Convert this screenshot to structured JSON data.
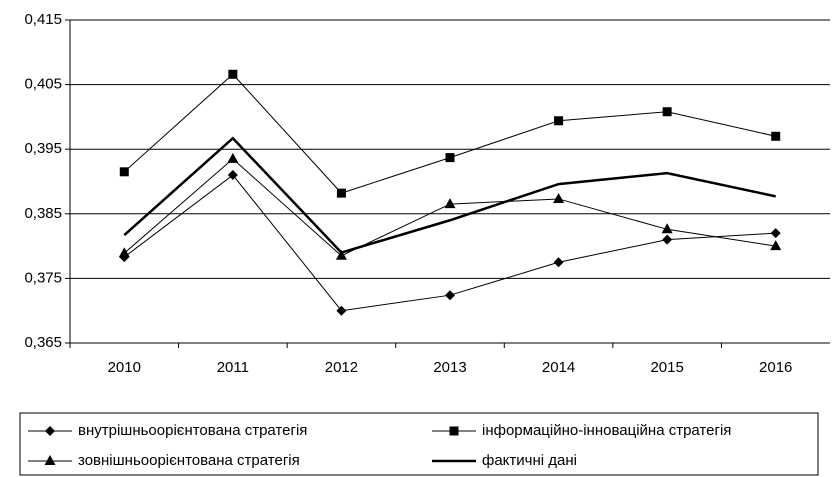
{
  "chart_data": {
    "type": "line",
    "categories": [
      "2010",
      "2011",
      "2012",
      "2013",
      "2014",
      "2015",
      "2016"
    ],
    "series": [
      {
        "name": "внутрішньоорієнтована стратегія",
        "color": "#000000",
        "marker": "diamond",
        "line_width": 1,
        "values": [
          0.3783,
          0.391,
          0.37,
          0.3724,
          0.3775,
          0.381,
          0.382
        ]
      },
      {
        "name": "інформаційно-інноваційна стратегія",
        "color": "#000000",
        "marker": "square",
        "line_width": 1,
        "values": [
          0.3915,
          0.4066,
          0.3882,
          0.3937,
          0.3994,
          0.4008,
          0.397
        ]
      },
      {
        "name": "зовнішньоорієнтована стратегія",
        "color": "#000000",
        "marker": "triangle",
        "line_width": 1,
        "values": [
          0.3789,
          0.3935,
          0.3785,
          0.3865,
          0.3873,
          0.3826,
          0.38
        ]
      },
      {
        "name": "фактичні дані",
        "color": "#000000",
        "line_width": 2.5,
        "values": [
          0.3817,
          0.3967,
          0.379,
          0.384,
          0.3896,
          0.3913,
          0.3877
        ]
      }
    ],
    "ylim": [
      0.365,
      0.415
    ],
    "yticks": [
      {
        "value": 0.365,
        "label": "0,365"
      },
      {
        "value": 0.375,
        "label": "0,375"
      },
      {
        "value": 0.385,
        "label": "0,385"
      },
      {
        "value": 0.395,
        "label": "0,395"
      },
      {
        "value": 0.405,
        "label": "0,405"
      },
      {
        "value": 0.415,
        "label": "0,415"
      }
    ],
    "grid": true
  }
}
